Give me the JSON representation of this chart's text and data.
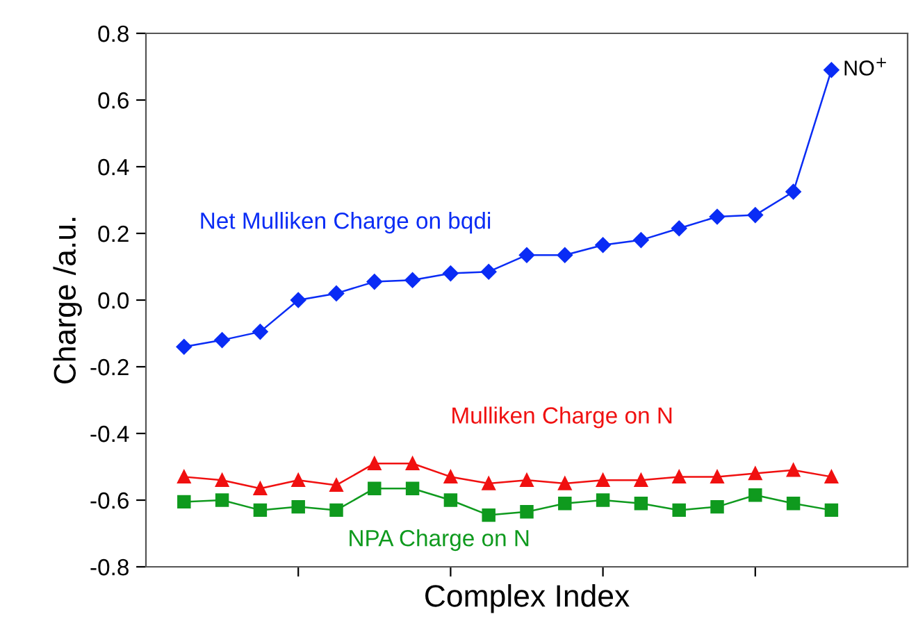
{
  "chart_data": {
    "type": "line",
    "xlabel": "Complex Index",
    "ylabel": "Charge /a.u.",
    "categories": [
      null,
      null,
      null,
      null,
      null,
      null,
      null,
      null,
      null,
      null,
      null,
      null,
      null,
      null,
      null,
      null,
      null,
      null
    ],
    "ylim": [
      -0.8,
      0.8
    ],
    "yticks": [
      {
        "value": -0.8,
        "label": "-0.8"
      },
      {
        "value": -0.6,
        "label": "-0.6"
      },
      {
        "value": -0.4,
        "label": "-0.4"
      },
      {
        "value": -0.2,
        "label": "-0.2"
      },
      {
        "value": 0.0,
        "label": "0.0"
      },
      {
        "value": 0.2,
        "label": "0.2"
      },
      {
        "value": 0.4,
        "label": "0.4"
      },
      {
        "value": 0.6,
        "label": "0.6"
      },
      {
        "value": 0.8,
        "label": "0.8"
      }
    ],
    "tick_labels": "y",
    "grid": false,
    "legend": false,
    "series": [
      {
        "name": "Net Mulliken Charge on bqdi",
        "color": "#0a2cf5",
        "marker": "diamond",
        "values": [
          -0.14,
          -0.12,
          -0.095,
          0.0,
          0.02,
          0.055,
          0.06,
          0.08,
          0.085,
          0.135,
          0.135,
          0.165,
          0.18,
          0.215,
          0.25,
          0.255,
          0.325,
          0.69
        ]
      },
      {
        "name": "Mulliken Charge on N",
        "color": "#f01010",
        "marker": "triangle",
        "values": [
          -0.53,
          -0.54,
          -0.565,
          -0.54,
          -0.555,
          -0.49,
          -0.49,
          -0.53,
          -0.55,
          -0.54,
          -0.55,
          -0.54,
          -0.54,
          -0.53,
          -0.53,
          -0.52,
          -0.51,
          -0.53
        ]
      },
      {
        "name": "NPA Charge on N",
        "color": "#0f9a1e",
        "marker": "square",
        "values": [
          -0.605,
          -0.6,
          -0.63,
          -0.62,
          -0.63,
          -0.565,
          -0.565,
          -0.6,
          -0.645,
          -0.635,
          -0.61,
          -0.6,
          -0.61,
          -0.63,
          -0.62,
          -0.585,
          -0.61,
          -0.63
        ]
      }
    ],
    "annotations": [
      "NO$^{+}$"
    ]
  }
}
